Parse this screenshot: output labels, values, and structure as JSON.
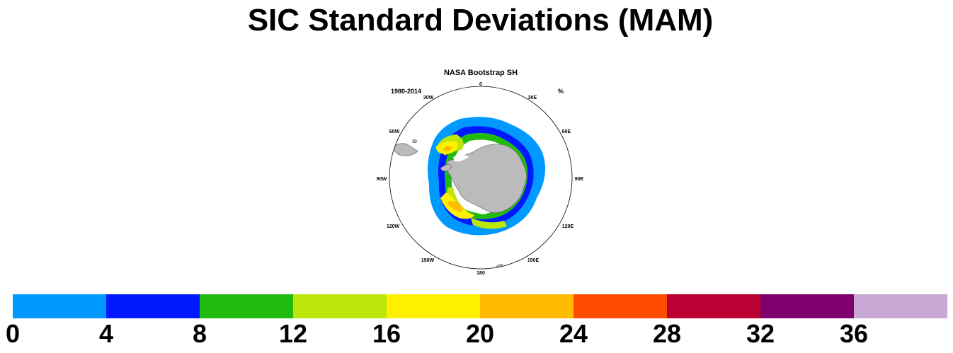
{
  "title": "SIC Standard Deviations (MAM)",
  "map": {
    "dataset": "NASA Bootstrap SH",
    "period": "1980-2014",
    "units": "%",
    "longitude_labels": [
      "0",
      "30E",
      "60E",
      "90E",
      "120E",
      "150E",
      "180",
      "150W",
      "120W",
      "90W",
      "60W",
      "30W"
    ]
  },
  "colorbar": {
    "labels": [
      "0",
      "4",
      "8",
      "12",
      "16",
      "20",
      "24",
      "28",
      "32",
      "36"
    ],
    "colors": [
      "#0099ff",
      "#0019ff",
      "#21bb0f",
      "#bde70b",
      "#fff000",
      "#ffbb00",
      "#ff4c00",
      "#bb0033",
      "#7f006c",
      "#c8a9d6"
    ],
    "land_color": "#bbbbbb"
  }
}
